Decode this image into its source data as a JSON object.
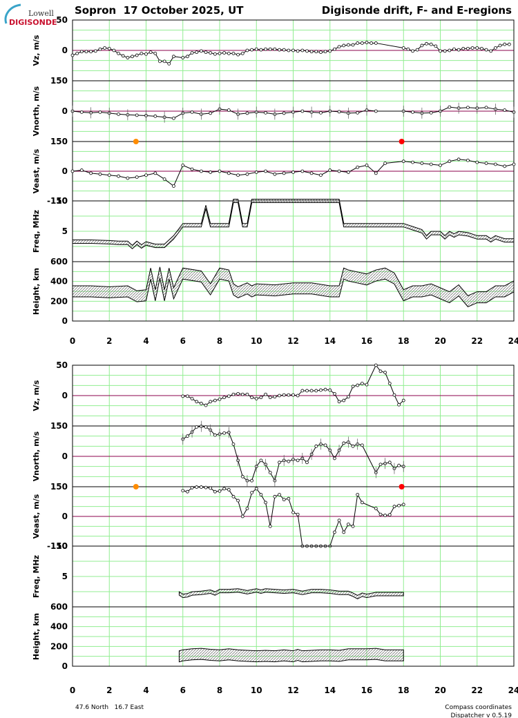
{
  "logo": {
    "top": "Lowell",
    "bottom": "DIGISONDE"
  },
  "header": {
    "left": "Sopron  17 October 2025, UT",
    "right": "Digisonde drift, F- and E-regions"
  },
  "footer": {
    "location": "47.6 North   16.7 East",
    "coords": "Compass coordinates",
    "version": "Dispatcher v 0.5.19"
  },
  "colors": {
    "grid": "#90ee90",
    "zero_line": "#8b004b",
    "sunrise": "#ff8c00",
    "sunset": "#ff0000",
    "trace": "#000000",
    "cross_hatch": "#808080"
  },
  "x_axis": {
    "ticks": [
      0,
      2,
      4,
      6,
      8,
      10,
      12,
      14,
      16,
      18,
      20,
      22,
      24
    ],
    "xlim": [
      0,
      24
    ]
  },
  "chart_data": [
    {
      "name": "F-region",
      "type": "line",
      "panels": [
        {
          "id": "vz",
          "ylabel": "Vz, m/s",
          "ylim": [
            -50,
            50
          ],
          "ticks": [
            50,
            0
          ],
          "x": [
            0,
            0.25,
            0.5,
            0.75,
            1,
            1.25,
            1.5,
            1.75,
            2,
            2.25,
            2.5,
            2.75,
            3,
            3.25,
            3.5,
            3.75,
            4,
            4.25,
            4.5,
            4.75,
            5,
            5.25,
            5.5,
            6,
            6.25,
            6.5,
            6.75,
            7,
            7.25,
            7.5,
            7.75,
            8,
            8.25,
            8.5,
            8.75,
            9,
            9.25,
            9.5,
            9.75,
            10,
            10.25,
            10.5,
            10.75,
            11,
            11.25,
            11.5,
            11.75,
            12,
            12.25,
            12.5,
            12.75,
            13,
            13.25,
            13.5,
            13.75,
            14,
            14.25,
            14.5,
            14.75,
            15,
            15.25,
            15.5,
            15.75,
            16,
            16.25,
            16.5,
            18,
            18.25,
            18.5,
            18.75,
            19,
            19.25,
            19.5,
            19.75,
            20,
            20.25,
            20.5,
            20.75,
            21,
            21.25,
            21.5,
            21.75,
            22,
            22.25,
            22.5,
            22.75,
            23,
            23.25,
            23.5,
            23.75
          ],
          "y": [
            -8,
            -5,
            -2,
            -2,
            -2,
            -1,
            2,
            4,
            3,
            0,
            -5,
            -9,
            -12,
            -10,
            -8,
            -5,
            -6,
            -3,
            -5,
            -18,
            -18,
            -22,
            -10,
            -12,
            -10,
            -4,
            -3,
            -1,
            -3,
            -4,
            -6,
            -5,
            -4,
            -5,
            -5,
            -7,
            -5,
            0,
            1,
            2,
            1,
            2,
            2,
            2,
            1,
            1,
            0,
            0,
            -1,
            0,
            -1,
            -2,
            -2,
            -3,
            -2,
            -1,
            2,
            6,
            8,
            9,
            9,
            12,
            12,
            13,
            12,
            12,
            4,
            2,
            -1,
            1,
            8,
            11,
            10,
            7,
            -1,
            -1,
            0,
            2,
            1,
            3,
            3,
            4,
            4,
            3,
            1,
            -1,
            4,
            8,
            10,
            10
          ]
        },
        {
          "id": "vnorth",
          "ylabel": "Vnorth, m/s",
          "ylim": [
            -150,
            150
          ],
          "ticks": [
            150,
            0
          ],
          "x": [
            0,
            0.5,
            1,
            1.5,
            2,
            2.5,
            3,
            3.5,
            4,
            4.5,
            5,
            5.5,
            6,
            6.5,
            7,
            7.5,
            8,
            8.5,
            9,
            9.5,
            10,
            10.5,
            11,
            11.5,
            12,
            12.5,
            13,
            13.5,
            14,
            14.5,
            15,
            15.5,
            16,
            16.5,
            18,
            18.5,
            19,
            19.5,
            20,
            20.5,
            21,
            21.5,
            22,
            22.5,
            23,
            23.5,
            24
          ],
          "y": [
            0,
            -5,
            -8,
            -5,
            -10,
            -15,
            -18,
            -20,
            -22,
            -25,
            -30,
            -35,
            -10,
            -5,
            -15,
            -10,
            10,
            5,
            -15,
            -10,
            -5,
            -8,
            -15,
            -10,
            -5,
            0,
            -5,
            -8,
            0,
            -3,
            -10,
            -8,
            5,
            0,
            0,
            -5,
            -10,
            -8,
            0,
            20,
            15,
            18,
            15,
            18,
            10,
            5,
            -5
          ]
        },
        {
          "id": "veast",
          "ylabel": "Veast, m/s",
          "ylim": [
            -150,
            150
          ],
          "ticks": [
            150,
            0,
            -150
          ],
          "x": [
            0,
            0.5,
            1,
            1.5,
            2,
            2.5,
            3,
            3.5,
            4,
            4.5,
            5,
            5.5,
            6,
            6.5,
            7,
            7.5,
            8,
            8.5,
            9,
            9.5,
            10,
            10.5,
            11,
            11.5,
            12,
            12.5,
            13,
            13.5,
            14,
            14.5,
            15,
            15.5,
            16,
            16.5,
            17,
            18,
            18.5,
            19,
            19.5,
            20,
            20.5,
            21,
            21.5,
            22,
            22.5,
            23,
            23.5,
            24
          ],
          "y": [
            0,
            5,
            -10,
            -15,
            -20,
            -25,
            -35,
            -30,
            -20,
            -10,
            -40,
            -75,
            30,
            10,
            0,
            -5,
            0,
            -10,
            -20,
            -15,
            -5,
            0,
            -15,
            -10,
            -5,
            0,
            -10,
            -20,
            5,
            0,
            -5,
            20,
            30,
            -10,
            40,
            50,
            45,
            40,
            35,
            30,
            50,
            60,
            55,
            45,
            40,
            35,
            25,
            35
          ]
        },
        {
          "id": "freq",
          "ylabel": "Freq, MHz",
          "ylim": [
            0,
            10
          ],
          "ticks": [
            10,
            5
          ],
          "x": [
            0,
            1,
            2,
            2.5,
            3,
            3.25,
            3.5,
            3.75,
            4,
            4.5,
            5,
            5.5,
            6,
            7,
            7.25,
            7.5,
            8,
            8.5,
            8.75,
            9,
            9.25,
            9.5,
            9.75,
            10,
            11,
            12,
            13,
            14,
            14.25,
            14.5,
            14.75,
            15,
            16,
            17,
            18,
            18.5,
            19,
            19.25,
            19.5,
            20,
            20.25,
            20.5,
            20.75,
            21,
            21.5,
            22,
            22.5,
            22.75,
            23,
            23.5,
            24
          ],
          "y": [
            3.3,
            3.3,
            3.2,
            3.1,
            3.1,
            2.4,
            3.1,
            2.5,
            3,
            2.6,
            2.6,
            4,
            6,
            6,
            9,
            6,
            6,
            6,
            10,
            10,
            6,
            6,
            10,
            10,
            10,
            10,
            10,
            10,
            10,
            10,
            6,
            6,
            6,
            6,
            6,
            5.5,
            5,
            4,
            4.7,
            4.7,
            4,
            4.7,
            4.3,
            4.7,
            4.5,
            4,
            4,
            3.5,
            4,
            3.5,
            3.5
          ]
        },
        {
          "id": "height",
          "ylabel": "Height, km",
          "ylim": [
            0,
            600
          ],
          "ticks": [
            600,
            400,
            200,
            0
          ],
          "x": [
            0,
            1,
            2,
            3,
            3.5,
            4,
            4.25,
            4.5,
            4.75,
            5,
            5.25,
            5.5,
            6,
            7,
            7.5,
            8,
            8.5,
            8.75,
            9,
            9.5,
            9.75,
            10,
            11,
            12,
            13,
            14,
            14.5,
            14.75,
            15,
            15.5,
            16,
            16.5,
            17,
            17.5,
            18,
            18.5,
            19,
            19.5,
            20,
            20.5,
            21,
            21.5,
            22,
            22.5,
            23,
            23.5,
            24
          ],
          "y": [
            300,
            300,
            290,
            300,
            250,
            260,
            480,
            260,
            490,
            260,
            480,
            280,
            480,
            450,
            320,
            480,
            460,
            320,
            290,
            330,
            300,
            320,
            310,
            330,
            330,
            300,
            300,
            480,
            460,
            440,
            420,
            460,
            480,
            430,
            260,
            300,
            300,
            320,
            280,
            240,
            310,
            200,
            240,
            240,
            300,
            300,
            350
          ]
        }
      ]
    },
    {
      "name": "E-region",
      "type": "line",
      "panels": [
        {
          "id": "vz",
          "ylabel": "Vz, m/s",
          "ylim": [
            -50,
            50
          ],
          "ticks": [
            50,
            0
          ],
          "x": [
            6,
            6.25,
            6.5,
            6.75,
            7,
            7.25,
            7.5,
            7.75,
            8,
            8.25,
            8.5,
            8.75,
            9,
            9.25,
            9.5,
            9.75,
            10,
            10.25,
            10.5,
            10.75,
            11,
            11.25,
            11.5,
            11.75,
            12,
            12.25,
            12.5,
            12.75,
            13,
            13.25,
            13.5,
            13.75,
            14,
            14.25,
            14.5,
            14.75,
            15,
            15.25,
            15.5,
            15.75,
            16,
            16.5,
            16.75,
            17,
            17.25,
            17.5,
            17.75,
            18
          ],
          "y": [
            -1,
            -1,
            -5,
            -10,
            -13,
            -16,
            -10,
            -8,
            -6,
            -3,
            -1,
            2,
            3,
            2,
            2,
            -3,
            -5,
            -3,
            2,
            -3,
            -2,
            0,
            1,
            1,
            1,
            0,
            8,
            8,
            8,
            8,
            9,
            10,
            9,
            3,
            -10,
            -8,
            -2,
            15,
            17,
            20,
            18,
            50,
            40,
            38,
            20,
            1,
            -15,
            -8
          ]
        },
        {
          "id": "vnorth",
          "ylabel": "Vnorth, m/s",
          "ylim": [
            -150,
            150
          ],
          "ticks": [
            150,
            0
          ],
          "x": [
            6,
            6.25,
            6.5,
            6.75,
            7,
            7.25,
            7.5,
            7.75,
            8,
            8.25,
            8.5,
            8.75,
            9,
            9.25,
            9.5,
            9.75,
            10,
            10.25,
            10.5,
            10.75,
            11,
            11.25,
            11.5,
            11.75,
            12,
            12.25,
            12.5,
            12.75,
            13,
            13.25,
            13.5,
            13.75,
            14,
            14.25,
            14.5,
            14.75,
            15,
            15.25,
            15.5,
            15.75,
            16.5,
            16.75,
            17,
            17.25,
            17.5,
            17.75,
            18
          ],
          "y": [
            85,
            100,
            120,
            145,
            148,
            145,
            130,
            105,
            110,
            115,
            118,
            60,
            -20,
            -100,
            -120,
            -120,
            -50,
            -20,
            -40,
            -80,
            -120,
            -30,
            -20,
            -25,
            -15,
            -20,
            -10,
            -30,
            10,
            50,
            60,
            55,
            30,
            -10,
            30,
            65,
            70,
            50,
            60,
            55,
            -80,
            -40,
            -35,
            -30,
            -60,
            -45,
            -50
          ]
        },
        {
          "id": "veast",
          "ylabel": "Veast, m/s",
          "ylim": [
            -150,
            150
          ],
          "ticks": [
            150,
            0,
            -150
          ],
          "x": [
            6,
            6.25,
            6.5,
            6.75,
            7,
            7.25,
            7.5,
            7.75,
            8,
            8.25,
            8.5,
            8.75,
            9,
            9.25,
            9.5,
            9.75,
            10,
            10.25,
            10.5,
            10.75,
            11,
            11.25,
            11.5,
            11.75,
            12,
            12.25,
            12.5,
            12.75,
            13,
            13.25,
            13.5,
            13.75,
            14,
            14.25,
            14.5,
            14.75,
            15,
            15.25,
            15.5,
            15.75,
            16.5,
            16.75,
            17,
            17.25,
            17.5,
            17.75,
            18
          ],
          "y": [
            130,
            125,
            145,
            148,
            148,
            146,
            143,
            125,
            128,
            140,
            135,
            100,
            80,
            0,
            40,
            120,
            140,
            110,
            70,
            -50,
            100,
            110,
            85,
            90,
            20,
            10,
            -150,
            -150,
            -150,
            -150,
            -150,
            -150,
            -150,
            -80,
            -20,
            -80,
            -40,
            -50,
            110,
            70,
            40,
            10,
            5,
            8,
            50,
            55,
            60
          ]
        },
        {
          "id": "freq",
          "ylabel": "Freq, MHz",
          "ylim": [
            0,
            10
          ],
          "ticks": [
            10,
            5
          ],
          "x": [
            5.8,
            6,
            6.25,
            6.5,
            7,
            7.5,
            7.75,
            8,
            8.5,
            9,
            9.5,
            10,
            10.25,
            10.5,
            11,
            11.5,
            12,
            12.5,
            13,
            13.5,
            14,
            14.5,
            15,
            15.25,
            15.5,
            15.75,
            16,
            16.5,
            17,
            17.5,
            18
          ],
          "y": [
            2.2,
            1.8,
            1.9,
            2.2,
            2.3,
            2.5,
            2.2,
            2.6,
            2.6,
            2.7,
            2.4,
            2.7,
            2.5,
            2.7,
            2.6,
            2.5,
            2.6,
            2.3,
            2.6,
            2.6,
            2.5,
            2.3,
            2.3,
            2,
            1.6,
            2,
            1.8,
            2.1,
            2.1,
            2.1,
            2.1
          ]
        },
        {
          "id": "height",
          "ylabel": "Height, km",
          "ylim": [
            0,
            600
          ],
          "ticks": [
            600,
            400,
            200,
            0
          ],
          "x": [
            5.8,
            6,
            6.5,
            7,
            7.5,
            8,
            8.5,
            9,
            9.5,
            10,
            10.5,
            11,
            11.5,
            12,
            12.25,
            12.5,
            13,
            13.5,
            14,
            14.5,
            15,
            15.5,
            16,
            16.5,
            17,
            17.5,
            18
          ],
          "y": [
            100,
            110,
            120,
            125,
            115,
            110,
            120,
            110,
            105,
            100,
            105,
            100,
            110,
            100,
            115,
            100,
            105,
            110,
            110,
            105,
            120,
            120,
            120,
            125,
            110,
            110,
            110
          ]
        }
      ]
    }
  ]
}
